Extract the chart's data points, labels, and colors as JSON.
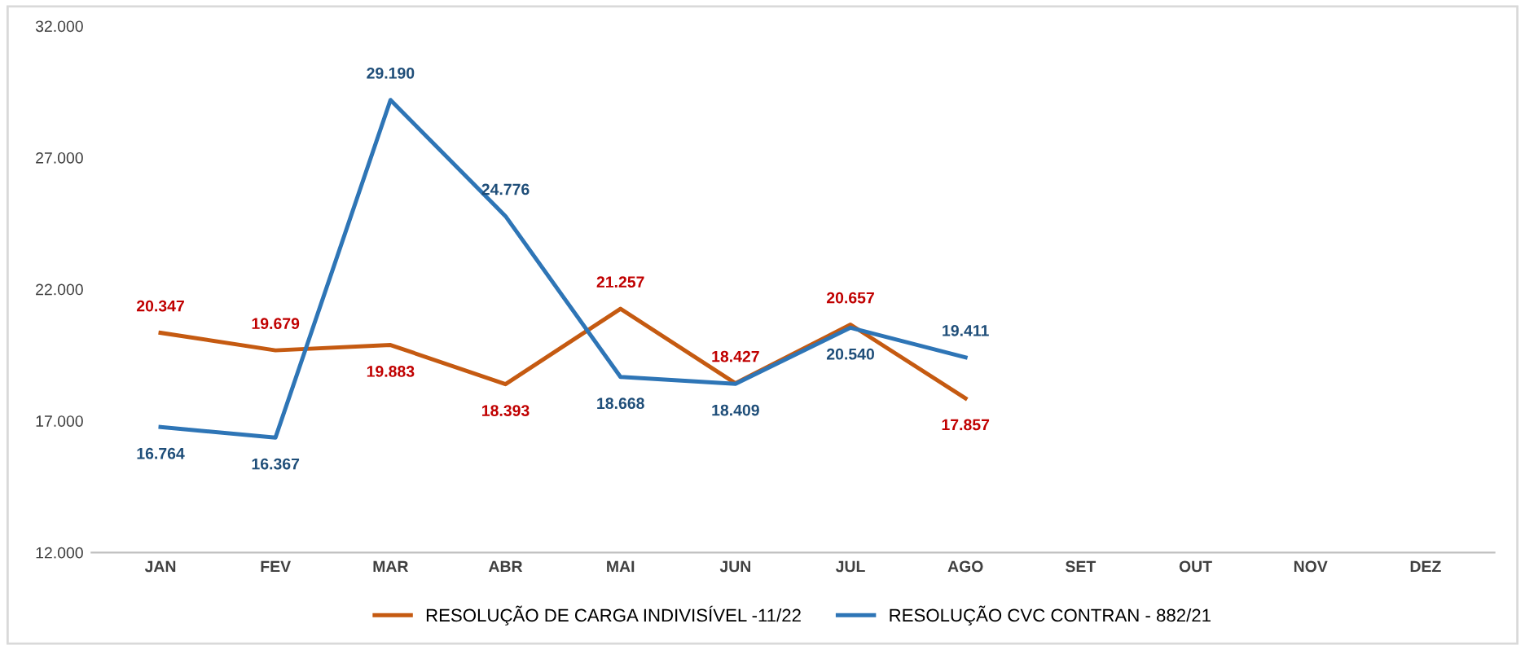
{
  "chart_data": {
    "type": "line",
    "categories": [
      "JAN",
      "FEV",
      "MAR",
      "ABR",
      "MAI",
      "JUN",
      "JUL",
      "AGO",
      "SET",
      "OUT",
      "NOV",
      "DEZ"
    ],
    "series": [
      {
        "name": "RESOLUÇÃO DE CARGA INDIVISÍVEL -11/22",
        "color": "#c55a11",
        "values": [
          20347,
          19679,
          19883,
          18393,
          21257,
          18427,
          20657,
          17857,
          null,
          null,
          null,
          null
        ],
        "value_labels": [
          "20.347",
          "19.679",
          "19.883",
          "18.393",
          "21.257",
          "18.427",
          "20.657",
          "17.857",
          null,
          null,
          null,
          null
        ]
      },
      {
        "name": "RESOLUÇÃO CVC CONTRAN - 882/21",
        "color": "#2e75b6",
        "values": [
          16764,
          16367,
          29190,
          24776,
          18668,
          18409,
          20540,
          19411,
          null,
          null,
          null,
          null
        ],
        "value_labels": [
          "16.764",
          "16.367",
          "29.190",
          "24.776",
          "18.668",
          "18.409",
          "20.540",
          "19.411",
          null,
          null,
          null,
          null
        ]
      }
    ],
    "ylim": [
      12000,
      32000
    ],
    "yticks": [
      {
        "value": 12000,
        "label": "12.000"
      },
      {
        "value": 17000,
        "label": "17.000"
      },
      {
        "value": 22000,
        "label": "22.000"
      },
      {
        "value": 27000,
        "label": "27.000"
      },
      {
        "value": 32000,
        "label": "32.000"
      }
    ],
    "grid": false,
    "legend": "bottom",
    "marker": "none",
    "line_style": "solid"
  }
}
